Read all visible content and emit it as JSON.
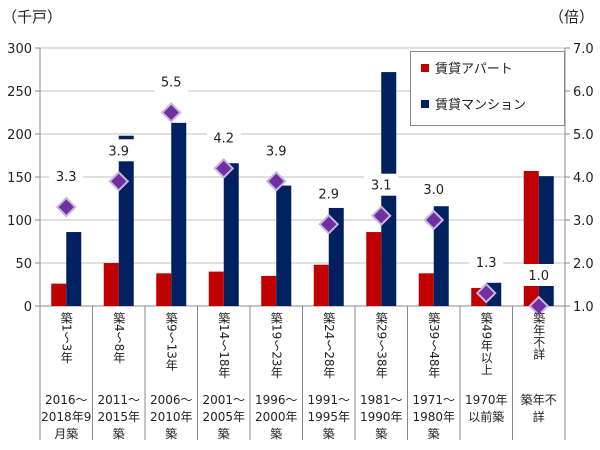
{
  "chart_data": {
    "type": "bar",
    "left_axis_unit": "（千戸）",
    "right_axis_unit": "（倍）",
    "categories": [
      {
        "age": "築1～3年",
        "period": [
          "2016～",
          "2018年9",
          "月築"
        ]
      },
      {
        "age": "築4～8年",
        "period": [
          "2011～",
          "2015年",
          "築"
        ]
      },
      {
        "age": "築9～13年",
        "period": [
          "2006～",
          "2010年",
          "築"
        ]
      },
      {
        "age": "築14～18年",
        "period": [
          "2001～",
          "2005年",
          "築"
        ]
      },
      {
        "age": "築19～23年",
        "period": [
          "1996～",
          "2000年",
          "築"
        ]
      },
      {
        "age": "築24～28年",
        "period": [
          "1991～",
          "1995年",
          "築"
        ]
      },
      {
        "age": "築29～38年",
        "period": [
          "1981～",
          "1990年",
          "築"
        ]
      },
      {
        "age": "築39～48年",
        "period": [
          "1971～",
          "1980年",
          "築"
        ]
      },
      {
        "age": "築49年以上",
        "period": [
          "1970年",
          "以前築"
        ]
      },
      {
        "age": "築年不詳",
        "period": [
          "築年不",
          "詳"
        ]
      }
    ],
    "series": [
      {
        "name": "賃貸アパート",
        "axis": "left",
        "color": "#c00000",
        "values": [
          26,
          50,
          38,
          40,
          35,
          48,
          86,
          38,
          21,
          157
        ]
      },
      {
        "name": "賃貸マンション",
        "axis": "left",
        "color": "#002060",
        "values": [
          86,
          198,
          213,
          166,
          140,
          114,
          272,
          116,
          27,
          151
        ]
      },
      {
        "axis": "right",
        "type": "scatter",
        "marker": "diamond",
        "color": "#7030a0",
        "values": [
          3.3,
          3.9,
          5.5,
          4.2,
          3.9,
          2.9,
          3.1,
          3.0,
          1.3,
          1.0
        ],
        "labels": [
          "3.3",
          "3.9",
          "5.5",
          "4.2",
          "3.9",
          "2.9",
          "3.1",
          "3.0",
          "1.3",
          "1.0"
        ]
      }
    ],
    "left_ylim": [
      0,
      300
    ],
    "left_ticks": [
      "0",
      "50",
      "100",
      "150",
      "200",
      "250",
      "300"
    ],
    "right_ylim": [
      1.0,
      7.0
    ],
    "right_ticks": [
      "1.0",
      "2.0",
      "3.0",
      "4.0",
      "5.0",
      "6.0",
      "7.0"
    ],
    "grid": true,
    "legend_position": "top-right"
  }
}
